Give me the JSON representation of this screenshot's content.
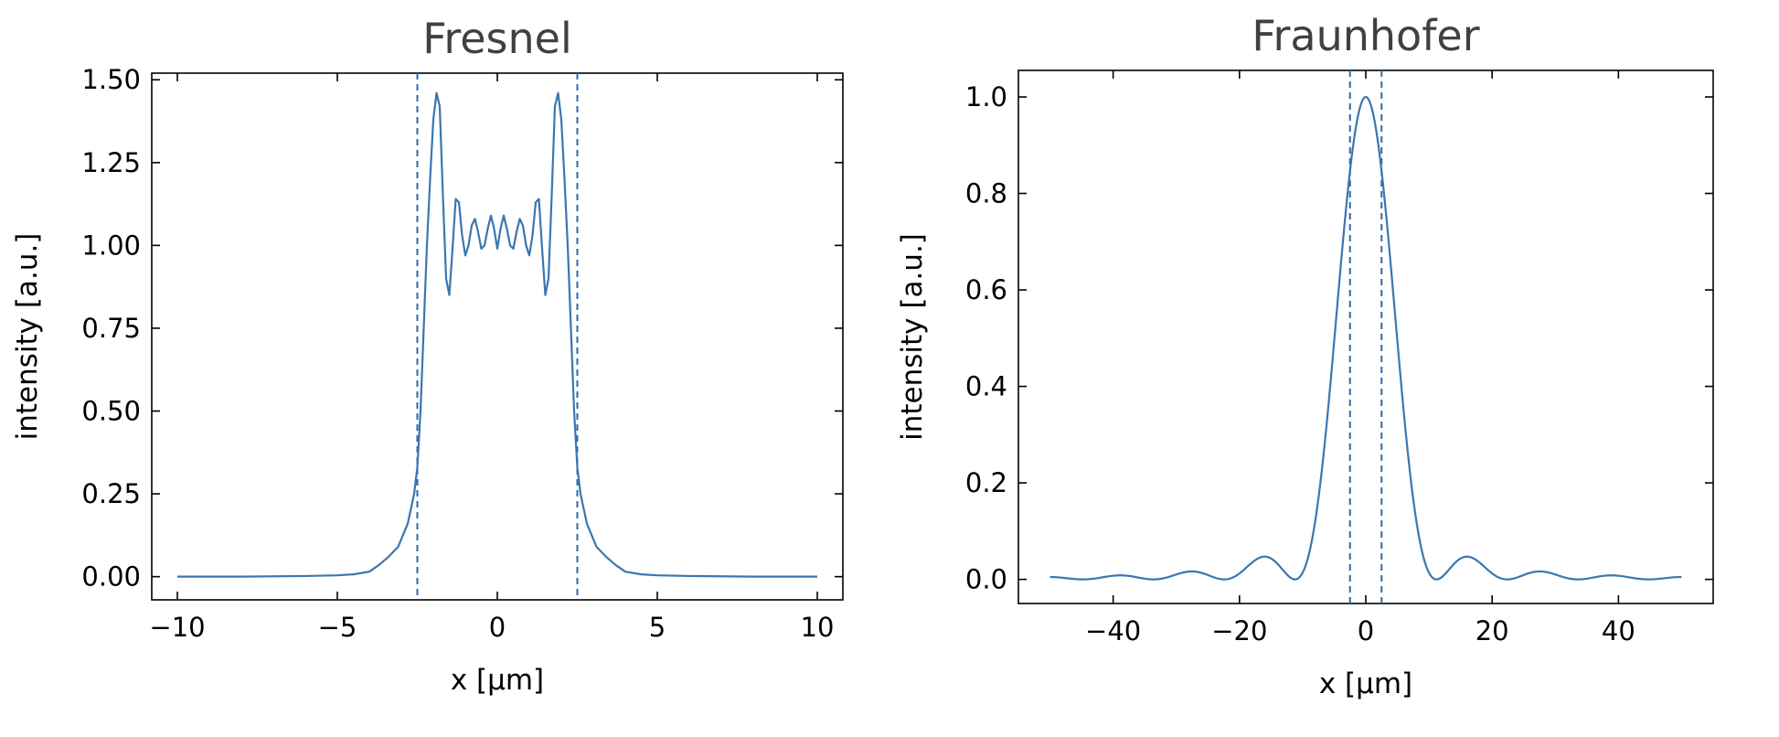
{
  "colors": {
    "series": "#3b76b0",
    "marker_line": "#2f6aa8"
  },
  "chart_data": [
    {
      "type": "line",
      "title": "Fresnel",
      "xlabel": "x [µm]",
      "ylabel": "intensity [a.u.]",
      "xlim": [
        -10.8,
        10.8
      ],
      "ylim": [
        -0.07,
        1.52
      ],
      "xticks": [
        -10,
        -5,
        0,
        5,
        10
      ],
      "xtick_labels": [
        "−10",
        "−5",
        "0",
        "5",
        "10"
      ],
      "yticks": [
        0,
        0.25,
        0.5,
        0.75,
        1.0,
        1.25,
        1.5
      ],
      "ytick_labels": [
        "0.00",
        "0.25",
        "0.50",
        "0.75",
        "1.00",
        "1.25",
        "1.50"
      ],
      "vlines": [
        -2.5,
        2.5
      ],
      "grid": false,
      "series": [
        {
          "x": [
            -10,
            -8,
            -6,
            -5,
            -4.5,
            -4,
            -3.7,
            -3.4,
            -3.1,
            -2.8,
            -2.6,
            -2.5,
            -2.4,
            -2.3,
            -2.2,
            -2.1,
            -2.0,
            -1.9,
            -1.8,
            -1.7,
            -1.6,
            -1.5,
            -1.4,
            -1.3,
            -1.2,
            -1.1,
            -1.0,
            -0.9,
            -0.8,
            -0.7,
            -0.6,
            -0.5,
            -0.4,
            -0.3,
            -0.2,
            -0.1,
            0,
            0.1,
            0.2,
            0.3,
            0.4,
            0.5,
            0.6,
            0.7,
            0.8,
            0.9,
            1.0,
            1.1,
            1.2,
            1.3,
            1.4,
            1.5,
            1.6,
            1.7,
            1.8,
            1.9,
            2.0,
            2.1,
            2.2,
            2.3,
            2.4,
            2.5,
            2.6,
            2.8,
            3.1,
            3.4,
            3.7,
            4,
            4.5,
            5,
            6,
            8,
            10
          ],
          "values": [
            0.0,
            0.0,
            0.002,
            0.004,
            0.007,
            0.015,
            0.035,
            0.06,
            0.09,
            0.16,
            0.25,
            0.33,
            0.5,
            0.75,
            1.0,
            1.2,
            1.38,
            1.46,
            1.42,
            1.15,
            0.9,
            0.85,
            0.99,
            1.14,
            1.13,
            1.03,
            0.97,
            1.0,
            1.06,
            1.08,
            1.04,
            0.99,
            1.0,
            1.05,
            1.09,
            1.05,
            0.99,
            1.05,
            1.09,
            1.05,
            1.0,
            0.99,
            1.04,
            1.08,
            1.06,
            1.0,
            0.97,
            1.03,
            1.13,
            1.14,
            0.99,
            0.85,
            0.9,
            1.15,
            1.42,
            1.46,
            1.38,
            1.2,
            1.0,
            0.75,
            0.5,
            0.33,
            0.25,
            0.16,
            0.09,
            0.06,
            0.035,
            0.015,
            0.007,
            0.004,
            0.002,
            0.0,
            0.0
          ]
        }
      ]
    },
    {
      "type": "line",
      "title": "Fraunhofer",
      "xlabel": "x [µm]",
      "ylabel": "intensity [a.u.]",
      "xlim": [
        -55,
        55
      ],
      "ylim": [
        -0.05,
        1.055
      ],
      "xticks": [
        -40,
        -20,
        0,
        20,
        40
      ],
      "xtick_labels": [
        "−40",
        "−20",
        "0",
        "20",
        "40"
      ],
      "yticks": [
        0,
        0.2,
        0.4,
        0.6,
        0.8,
        1.0
      ],
      "ytick_labels": [
        "0.0",
        "0.2",
        "0.4",
        "0.6",
        "0.8",
        "1.0"
      ],
      "vlines": [
        -2.5,
        2.5
      ],
      "grid": false,
      "sinc_zero_spacing": 11.2,
      "xrange": [
        -50,
        50
      ],
      "series": [
        {
          "x": [
            0,
            11.2,
            15.4,
            22.4,
            27.6,
            33.6,
            39.2,
            50
          ],
          "values": [
            1.0,
            0.0,
            0.047,
            0.0,
            0.016,
            0.0,
            0.008,
            0.002
          ]
        }
      ]
    }
  ]
}
